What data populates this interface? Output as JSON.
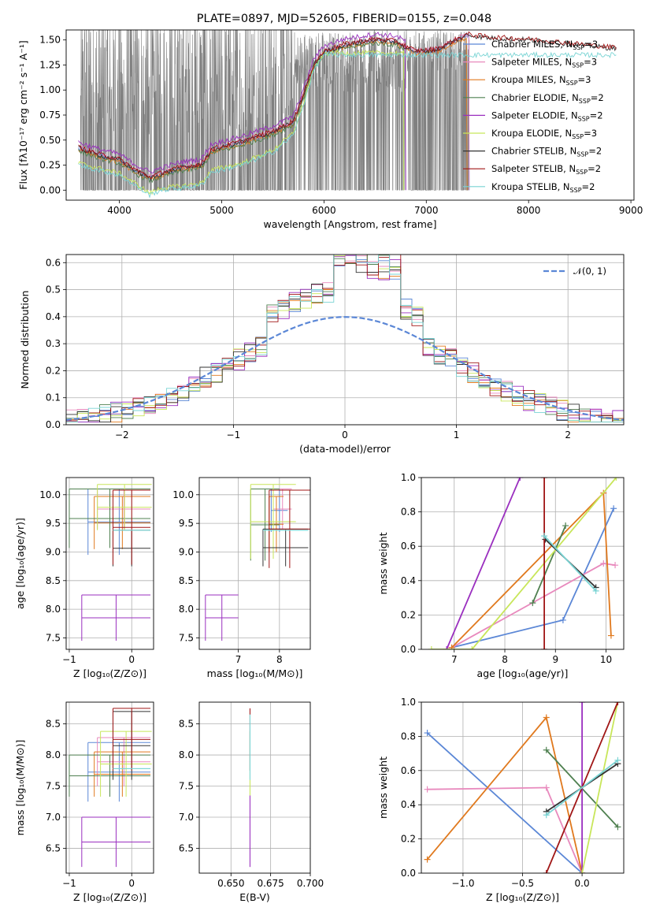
{
  "colors": {
    "Chabrier MILES": "#5b87d6",
    "Salpeter MILES": "#e889bd",
    "Kroupa MILES": "#e0791e",
    "Chabrier ELODIE": "#4f8050",
    "Salpeter ELODIE": "#9a2fbf",
    "Kroupa ELODIE": "#c8e65a",
    "Chabrier STELIB": "#333333",
    "Salpeter STELIB": "#a01616",
    "Kroupa STELIB": "#79d4d4",
    "data": "#808080",
    "gaussian": "#5b87d6"
  },
  "chart_data": [
    {
      "id": "spectrum",
      "type": "line",
      "title": "PLATE=0897, MJD=52605, FIBERID=0155, z=0.048",
      "xlabel": "wavelength [Angstrom, rest frame]",
      "ylabel": "Flux [fλ10⁻¹⁷ erg cm⁻² s⁻¹ A⁻¹]",
      "xlim": [
        3480,
        9030
      ],
      "ylim": [
        -0.1,
        1.6
      ],
      "xticks": [
        4000,
        5000,
        6000,
        7000,
        8000,
        9000
      ],
      "yticks": [
        0.0,
        0.25,
        0.5,
        0.75,
        1.0,
        1.25,
        1.5
      ],
      "ytick_labels": [
        "0.00",
        "0.25",
        "0.50",
        "0.75",
        "1.00",
        "1.25",
        "1.50"
      ],
      "legend": {
        "placement": "upper right",
        "entries": [
          {
            "name": "Chabrier MILES",
            "nssp": "3"
          },
          {
            "name": "Salpeter MILES",
            "nssp": "3"
          },
          {
            "name": "Kroupa MILES",
            "nssp": "3"
          },
          {
            "name": "Chabrier ELODIE",
            "nssp": "2"
          },
          {
            "name": "Salpeter ELODIE",
            "nssp": "2"
          },
          {
            "name": "Kroupa ELODIE",
            "nssp": "3"
          },
          {
            "name": "Chabrier STELIB",
            "nssp": "2"
          },
          {
            "name": "Salpeter STELIB",
            "nssp": "2"
          },
          {
            "name": "Kroupa STELIB",
            "nssp": "2"
          }
        ]
      },
      "model_continuum": {
        "x": [
          3600,
          3800,
          4000,
          4150,
          4300,
          4400,
          4600,
          4800,
          4900,
          5200,
          5500,
          5700,
          5800,
          5900,
          6000,
          6200,
          6500,
          6700,
          6900,
          7100,
          7400,
          7600,
          8000,
          8500,
          8800
        ],
        "y": [
          0.42,
          0.35,
          0.3,
          0.2,
          0.12,
          0.16,
          0.22,
          0.25,
          0.4,
          0.48,
          0.58,
          0.68,
          0.95,
          1.25,
          1.38,
          1.45,
          1.5,
          1.48,
          1.38,
          1.4,
          1.55,
          1.52,
          1.5,
          1.45,
          1.42
        ]
      },
      "model_blue_dip": {
        "x": [
          3600,
          3800,
          4000,
          4150,
          4300,
          4400,
          4600,
          4800,
          4900,
          5200,
          5500,
          5700,
          5800,
          5900,
          6000
        ],
        "y": [
          0.25,
          0.2,
          0.15,
          0.05,
          -0.05,
          0.0,
          0.02,
          0.05,
          0.18,
          0.25,
          0.38,
          0.55,
          0.85,
          1.2,
          1.35
        ]
      },
      "data_range": {
        "x_start": 3620,
        "x_end": 7420,
        "y_min": 0.0,
        "y_max": 1.6
      }
    },
    {
      "id": "residuals",
      "type": "line",
      "xlabel": "(data-model)/error",
      "ylabel": "Normed distribution",
      "xlim": [
        -2.5,
        2.5
      ],
      "ylim": [
        0.0,
        0.63
      ],
      "xticks": [
        -2,
        -1,
        0,
        1,
        2
      ],
      "xtick_labels": [
        "−2",
        "−1",
        "0",
        "1",
        "2"
      ],
      "yticks": [
        0.0,
        0.1,
        0.2,
        0.3,
        0.4,
        0.5,
        0.6
      ],
      "ytick_labels": [
        "0.0",
        "0.1",
        "0.2",
        "0.3",
        "0.4",
        "0.5",
        "0.6"
      ],
      "legend": {
        "placement": "upper right",
        "entries": [
          "𝒩(0, 1)"
        ]
      },
      "gaussian": {
        "mu": 0,
        "sigma": 1
      }
    },
    {
      "id": "age_vs_Z",
      "type": "scatter",
      "xlabel": "Z [log₁₀(Z/Z⊙)]",
      "ylabel": "age  [log₁₀(age/yr)]",
      "xlim": [
        -1.05,
        0.35
      ],
      "ylim": [
        7.3,
        10.3
      ],
      "xticks": [
        -1,
        0
      ],
      "xtick_labels": [
        "−1",
        "0"
      ],
      "yticks": [
        7.5,
        8.0,
        8.5,
        9.0,
        9.5,
        10.0
      ],
      "ytick_labels": [
        "7.5",
        "8.0",
        "8.5",
        "9.0",
        "9.5",
        "10.0"
      ],
      "crosses": [
        {
          "model": "Chabrier MILES",
          "x": [
            -0.7,
            0.3
          ],
          "y": [
            8.95,
            10.1
          ]
        },
        {
          "model": "Salpeter MILES",
          "x": [
            -0.55,
            0.3
          ],
          "y": [
            9.4,
            10.1
          ]
        },
        {
          "model": "Kroupa MILES",
          "x": [
            -0.6,
            0.3
          ],
          "y": [
            9.05,
            9.97
          ]
        },
        {
          "model": "Chabrier ELODIE",
          "x": [
            -1.0,
            0.3
          ],
          "y": [
            9.07,
            10.1
          ]
        },
        {
          "model": "Salpeter ELODIE",
          "x": [
            -0.8,
            0.3
          ],
          "y": [
            7.45,
            8.25
          ]
        },
        {
          "model": "Kroupa ELODIE",
          "x": [
            -0.55,
            0.32
          ],
          "y": [
            9.38,
            10.18
          ]
        },
        {
          "model": "Chabrier STELIB",
          "x": [
            -0.3,
            0.3
          ],
          "y": [
            8.75,
            9.38
          ]
        },
        {
          "model": "Salpeter STELIB",
          "x": [
            -0.3,
            0.3
          ],
          "y": [
            8.78,
            10.08
          ]
        },
        {
          "model": "Kroupa STELIB",
          "x": [
            -0.3,
            0.3
          ],
          "y": [
            9.38,
            9.38
          ]
        }
      ]
    },
    {
      "id": "age_vs_mass",
      "type": "scatter",
      "xlabel": "mass [log₁₀(M/M⊙)]",
      "xlim": [
        6.05,
        8.75
      ],
      "ylim": [
        7.3,
        10.3
      ],
      "xticks": [
        7,
        8
      ],
      "xtick_labels": [
        "7",
        "8"
      ],
      "yticks": [
        7.5,
        8.0,
        8.5,
        9.0,
        9.5,
        10.0
      ],
      "ytick_labels": [
        "7.5",
        "8.0",
        "8.5",
        "9.0",
        "9.5",
        "10.0"
      ],
      "crosses": [
        {
          "model": "Chabrier MILES",
          "x": [
            7.8,
            8.2
          ],
          "y": [
            9.35,
            10.1
          ]
        },
        {
          "model": "Salpeter MILES",
          "x": [
            7.85,
            8.3
          ],
          "y": [
            9.4,
            10.1
          ]
        },
        {
          "model": "Kroupa MILES",
          "x": [
            7.75,
            8.1
          ],
          "y": [
            9.0,
            9.97
          ]
        },
        {
          "model": "Chabrier ELODIE",
          "x": [
            7.3,
            8.0
          ],
          "y": [
            8.85,
            10.1
          ]
        },
        {
          "model": "Salpeter ELODIE",
          "x": [
            6.2,
            7.0
          ],
          "y": [
            7.45,
            8.25
          ]
        },
        {
          "model": "Kroupa ELODIE",
          "x": [
            7.3,
            8.4
          ],
          "y": [
            8.88,
            10.18
          ]
        },
        {
          "model": "Chabrier STELIB",
          "x": [
            7.6,
            8.7
          ],
          "y": [
            8.75,
            9.4
          ]
        },
        {
          "model": "Salpeter STELIB",
          "x": [
            7.75,
            8.75
          ],
          "y": [
            8.72,
            10.08
          ]
        },
        {
          "model": "Kroupa STELIB",
          "x": [
            7.6,
            8.7
          ],
          "y": [
            9.38,
            9.38
          ]
        }
      ]
    },
    {
      "id": "weight_vs_age",
      "type": "line",
      "xlabel": "age  [log₁₀(age/yr)]",
      "ylabel": "mass weight",
      "xlim": [
        6.35,
        10.35
      ],
      "ylim": [
        0.0,
        1.0
      ],
      "xticks": [
        7,
        8,
        9,
        10
      ],
      "xtick_labels": [
        "7",
        "8",
        "9",
        "10"
      ],
      "yticks": [
        0.0,
        0.2,
        0.4,
        0.6,
        0.8,
        1.0
      ],
      "ytick_labels": [
        "0.0",
        "0.2",
        "0.4",
        "0.6",
        "0.8",
        "1.0"
      ],
      "series": [
        {
          "model": "Chabrier MILES",
          "x": [
            6.95,
            9.15,
            10.15
          ],
          "y": [
            0.01,
            0.17,
            0.82
          ]
        },
        {
          "model": "Salpeter MILES",
          "x": [
            6.95,
            9.95,
            10.18
          ],
          "y": [
            0.01,
            0.5,
            0.49
          ]
        },
        {
          "model": "Kroupa MILES",
          "x": [
            6.95,
            9.95,
            10.1
          ],
          "y": [
            0.01,
            0.91,
            0.08
          ]
        },
        {
          "model": "Chabrier ELODIE",
          "x": [
            8.55,
            9.2
          ],
          "y": [
            0.27,
            0.72
          ]
        },
        {
          "model": "Salpeter ELODIE",
          "x": [
            6.85,
            8.3
          ],
          "y": [
            0.0,
            1.0
          ]
        },
        {
          "model": "Kroupa ELODIE",
          "x": [
            6.55,
            7.35,
            10.2
          ],
          "y": [
            0.0,
            0.0,
            1.0
          ]
        },
        {
          "model": "Chabrier STELIB",
          "x": [
            8.8,
            9.8
          ],
          "y": [
            0.64,
            0.36
          ]
        },
        {
          "model": "Salpeter STELIB",
          "x": [
            8.78,
            8.78
          ],
          "y": [
            0.0,
            1.0
          ]
        },
        {
          "model": "Kroupa STELIB",
          "x": [
            8.78,
            9.8
          ],
          "y": [
            0.66,
            0.34
          ]
        }
      ]
    },
    {
      "id": "mass_vs_Z",
      "type": "scatter",
      "xlabel": "Z [log₁₀(Z/Z⊙)]",
      "ylabel": "mass [log₁₀(M/M⊙)]",
      "xlim": [
        -1.05,
        0.35
      ],
      "ylim": [
        6.1,
        8.85
      ],
      "xticks": [
        -1,
        0
      ],
      "xtick_labels": [
        "−1",
        "0"
      ],
      "yticks": [
        6.5,
        7.0,
        7.5,
        8.0,
        8.5
      ],
      "ytick_labels": [
        "6.5",
        "7.0",
        "7.5",
        "8.0",
        "8.5"
      ],
      "crosses": [
        {
          "model": "Chabrier MILES",
          "x": [
            -0.7,
            0.3
          ],
          "y": [
            7.25,
            8.2
          ]
        },
        {
          "model": "Salpeter MILES",
          "x": [
            -0.55,
            0.3
          ],
          "y": [
            7.5,
            8.28
          ]
        },
        {
          "model": "Kroupa MILES",
          "x": [
            -0.6,
            0.3
          ],
          "y": [
            7.33,
            8.05
          ]
        },
        {
          "model": "Chabrier ELODIE",
          "x": [
            -1.0,
            0.3
          ],
          "y": [
            7.33,
            8.0
          ]
        },
        {
          "model": "Salpeter ELODIE",
          "x": [
            -0.8,
            0.3
          ],
          "y": [
            6.2,
            7.0
          ]
        },
        {
          "model": "Kroupa ELODIE",
          "x": [
            -0.5,
            0.32
          ],
          "y": [
            7.33,
            8.38
          ]
        },
        {
          "model": "Chabrier STELIB",
          "x": [
            -0.3,
            0.3
          ],
          "y": [
            7.6,
            8.7
          ]
        },
        {
          "model": "Salpeter STELIB",
          "x": [
            -0.3,
            0.3
          ],
          "y": [
            7.75,
            8.75
          ]
        },
        {
          "model": "Kroupa STELIB",
          "x": [
            -0.3,
            0.3
          ],
          "y": [
            7.78,
            7.78
          ]
        }
      ]
    },
    {
      "id": "mass_vs_ebv",
      "type": "scatter",
      "xlabel": "E(B-V)",
      "xlim": [
        0.63,
        0.7
      ],
      "ylim": [
        6.1,
        8.85
      ],
      "xticks": [
        0.65,
        0.675,
        0.7
      ],
      "xtick_labels": [
        "0.650",
        "0.675",
        "0.700"
      ],
      "yticks": [
        6.5,
        7.0,
        7.5,
        8.0,
        8.5
      ],
      "ytick_labels": [
        "6.5",
        "7.0",
        "7.5",
        "8.0",
        "8.5"
      ],
      "crosses": [
        {
          "model": "Salpeter ELODIE",
          "x": [
            0.662,
            0.662
          ],
          "y": [
            6.2,
            7.35
          ]
        },
        {
          "model": "Kroupa ELODIE",
          "x": [
            0.662,
            0.662
          ],
          "y": [
            7.35,
            8.38
          ]
        },
        {
          "model": "Salpeter STELIB",
          "x": [
            0.662,
            0.662
          ],
          "y": [
            7.75,
            8.75
          ]
        },
        {
          "model": "Kroupa STELIB",
          "x": [
            0.662,
            0.662
          ],
          "y": [
            7.6,
            8.65
          ]
        }
      ]
    },
    {
      "id": "weight_vs_Z",
      "type": "line",
      "xlabel": "Z [log₁₀(Z/Z⊙)]",
      "ylabel": "mass weight",
      "xlim": [
        -1.35,
        0.35
      ],
      "ylim": [
        0.0,
        1.0
      ],
      "xticks": [
        -1.0,
        -0.5,
        0.0
      ],
      "xtick_labels": [
        "−1.0",
        "−0.5",
        "0.0"
      ],
      "yticks": [
        0.0,
        0.2,
        0.4,
        0.6,
        0.8,
        1.0
      ],
      "ytick_labels": [
        "0.0",
        "0.2",
        "0.4",
        "0.6",
        "0.8",
        "1.0"
      ],
      "series": [
        {
          "model": "Chabrier MILES",
          "x": [
            -1.3,
            0.0
          ],
          "y": [
            0.82,
            0.0
          ]
        },
        {
          "model": "Salpeter MILES",
          "x": [
            -1.3,
            -0.3,
            0.0
          ],
          "y": [
            0.49,
            0.5,
            0.0
          ]
        },
        {
          "model": "Kroupa MILES",
          "x": [
            -1.3,
            -0.3,
            0.0
          ],
          "y": [
            0.08,
            0.91,
            0.0
          ]
        },
        {
          "model": "Chabrier ELODIE",
          "x": [
            -0.3,
            0.3
          ],
          "y": [
            0.72,
            0.27
          ]
        },
        {
          "model": "Salpeter ELODIE",
          "x": [
            0.0,
            0.0
          ],
          "y": [
            0.0,
            1.0
          ]
        },
        {
          "model": "Kroupa ELODIE",
          "x": [
            0.0,
            0.3
          ],
          "y": [
            0.0,
            1.0
          ]
        },
        {
          "model": "Chabrier STELIB",
          "x": [
            -0.3,
            0.3
          ],
          "y": [
            0.36,
            0.64
          ]
        },
        {
          "model": "Salpeter STELIB",
          "x": [
            -0.3,
            0.3
          ],
          "y": [
            0.0,
            1.0
          ]
        },
        {
          "model": "Kroupa STELIB",
          "x": [
            -0.3,
            0.3
          ],
          "y": [
            0.34,
            0.66
          ]
        }
      ]
    }
  ]
}
